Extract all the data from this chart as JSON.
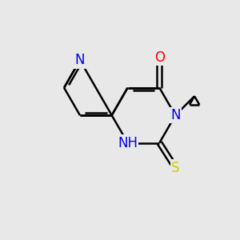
{
  "background_color": "#e8e8e8",
  "bond_color": "#000000",
  "bond_width": 1.8,
  "atom_colors": {
    "N": "#0000ee",
    "O": "#ff0000",
    "S": "#cccc00",
    "C": "#000000"
  },
  "font_size_atom": 12,
  "figsize": [
    3.0,
    3.0
  ],
  "dpi": 100
}
